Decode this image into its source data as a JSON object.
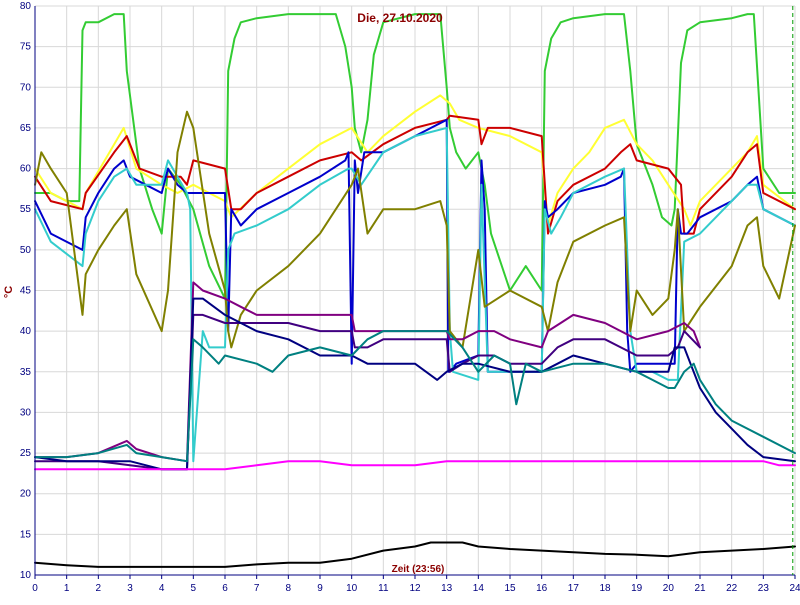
{
  "chart_data": {
    "type": "line",
    "title": "Die, 27.10.2020",
    "xlabel": "Zeit (23:56)",
    "ylabel": "°C",
    "xlim": [
      0,
      24
    ],
    "ylim": [
      10,
      80
    ],
    "grid": true,
    "x_ticks": [
      "0",
      "1",
      "2",
      "3",
      "4",
      "5",
      "6",
      "7",
      "8",
      "9",
      "10",
      "11",
      "12",
      "13",
      "14",
      "15",
      "16",
      "17",
      "18",
      "19",
      "20",
      "21",
      "22",
      "23",
      "24"
    ],
    "y_ticks": [
      "10",
      "15",
      "20",
      "25",
      "30",
      "35",
      "40",
      "45",
      "50",
      "55",
      "60",
      "65",
      "70",
      "75",
      "80"
    ],
    "series": [
      {
        "color": "#33cc33",
        "x": [
          0,
          0.5,
          1,
          1.4,
          1.5,
          1.6,
          2,
          2.5,
          2.8,
          2.9,
          3.3,
          3.7,
          4,
          4.2,
          4.6,
          5.0,
          5.5,
          6.0,
          6.1,
          6.3,
          6.5,
          7,
          8,
          9,
          9.5,
          9.8,
          10.0,
          10.1,
          10.3,
          10.5,
          10.7,
          11,
          12,
          12.8,
          13.0,
          13.1,
          13.3,
          13.6,
          14.0,
          14.2,
          14.4,
          15,
          15.5,
          16.0,
          16.1,
          16.3,
          16.6,
          17,
          18,
          18.6,
          18.8,
          19,
          19.5,
          19.8,
          20.1,
          20.2,
          20.4,
          20.6,
          21,
          22,
          22.5,
          22.7,
          23,
          23.5,
          24
        ],
        "y": [
          57,
          57,
          56,
          56,
          77,
          78,
          78,
          79,
          79,
          72,
          60,
          55,
          52,
          60,
          58,
          55,
          48,
          44,
          72,
          76,
          78,
          78.5,
          79,
          79,
          79,
          75,
          70,
          65,
          62,
          66,
          74,
          78,
          79,
          79,
          70,
          65,
          62,
          60,
          62,
          58,
          52,
          45,
          48,
          45,
          72,
          76,
          78,
          78.5,
          79,
          79,
          72,
          63,
          58,
          54,
          53,
          55,
          73,
          77,
          78,
          78.5,
          79,
          79,
          60,
          57,
          57
        ]
      },
      {
        "color": "#ffff33",
        "x": [
          0,
          0.5,
          1.5,
          1.6,
          2.5,
          2.8,
          3.2,
          4,
          4.5,
          5,
          5.5,
          6,
          6.2,
          7,
          8,
          9,
          10,
          10.5,
          11,
          12,
          12.8,
          13.1,
          13.4,
          14,
          15,
          16,
          16.2,
          16.5,
          17,
          17.5,
          18,
          18.6,
          19,
          19.5,
          20,
          20.5,
          20.7,
          21,
          22,
          22.5,
          22.8,
          23,
          24
        ],
        "y": [
          60,
          57,
          55,
          57,
          63,
          65,
          60,
          58,
          57,
          58,
          57,
          56,
          54,
          57,
          60,
          63,
          65,
          62,
          64,
          67,
          69,
          68,
          66,
          65,
          64,
          62,
          53,
          57,
          60,
          62,
          65,
          66,
          63,
          61,
          58,
          55,
          53,
          56,
          60,
          62,
          64,
          58,
          55
        ]
      },
      {
        "color": "#cc0000",
        "x": [
          0,
          0.5,
          1.5,
          1.6,
          2.5,
          2.9,
          3.3,
          4,
          4.6,
          4.8,
          5,
          5.5,
          6.0,
          6.2,
          6.5,
          7,
          8,
          9,
          10,
          10.3,
          11,
          12,
          13,
          13.1,
          14,
          14.1,
          14.3,
          15,
          16,
          16.2,
          16.5,
          17,
          18,
          18.5,
          18.8,
          19,
          20,
          20.4,
          20.5,
          20.8,
          21,
          22,
          22.5,
          22.8,
          23,
          24
        ],
        "y": [
          59,
          56,
          55,
          57,
          62,
          64,
          60,
          59,
          59,
          58,
          61,
          60.5,
          60,
          55,
          55,
          57,
          59,
          61,
          62,
          61,
          63,
          65,
          66,
          66.5,
          66,
          63,
          65,
          65,
          64,
          52,
          56,
          58,
          60,
          62,
          63,
          61,
          60,
          58,
          52,
          52,
          55,
          59,
          62,
          63,
          57,
          55
        ]
      },
      {
        "color": "#0000cc",
        "x": [
          0,
          0.5,
          1.5,
          1.6,
          2,
          2.5,
          2.8,
          3,
          3.5,
          4,
          4.2,
          4.5,
          4.8,
          4.9,
          5.0,
          5.5,
          6.0,
          6.1,
          6.2,
          6.5,
          7,
          8,
          9,
          9.8,
          9.9,
          10.0,
          10.1,
          10.2,
          10.4,
          11,
          12,
          13,
          13.05,
          13.1,
          13.3,
          14,
          14.1,
          14.2,
          14.3,
          14.5,
          15,
          16,
          16.1,
          16.2,
          16.5,
          17,
          18,
          18.5,
          18.6,
          18.7,
          18.8,
          19,
          19.5,
          20,
          20.2,
          20.3,
          20.4,
          20.6,
          21,
          22,
          22.5,
          22.8,
          23,
          24
        ],
        "y": [
          56,
          52,
          50,
          54,
          57,
          60,
          61,
          59,
          58,
          57,
          60,
          58,
          57,
          57,
          57,
          57,
          57,
          40,
          55,
          53,
          55,
          57,
          59,
          61,
          62,
          36,
          61,
          57,
          62,
          62,
          64,
          66,
          35,
          35,
          36,
          37,
          61,
          55,
          35,
          35,
          35,
          35,
          56,
          54,
          55,
          57,
          58,
          59,
          60,
          40,
          35,
          36,
          36,
          36,
          36,
          55,
          52,
          52,
          54,
          56,
          58,
          59,
          55,
          53
        ]
      },
      {
        "color": "#33cccc",
        "x": [
          0,
          0.5,
          1.5,
          1.6,
          2,
          2.5,
          2.9,
          3.2,
          4,
          4.2,
          4.5,
          4.8,
          4.9,
          5.0,
          5.3,
          5.5,
          6.0,
          6.1,
          6.3,
          7,
          8,
          9,
          9.9,
          10.0,
          10.3,
          11,
          12,
          13,
          13.1,
          13.2,
          14,
          14.1,
          14.3,
          15,
          16,
          16.1,
          16.3,
          16.6,
          17,
          18,
          18.6,
          18.8,
          19,
          19.5,
          20,
          20.2,
          20.3,
          20.5,
          21,
          22,
          22.5,
          22.8,
          23,
          24
        ],
        "y": [
          55,
          51,
          48,
          52,
          56,
          59,
          60,
          58,
          58,
          61,
          59,
          57,
          55,
          24,
          40,
          38,
          38,
          50,
          52,
          53,
          55,
          58,
          60,
          60,
          58,
          62,
          64,
          65,
          40,
          35,
          34,
          58,
          35,
          35,
          35,
          55,
          52,
          54,
          57,
          59,
          60,
          40,
          35,
          35,
          34,
          34,
          34,
          51,
          52,
          56,
          58,
          58,
          55,
          53
        ]
      },
      {
        "color": "#808000",
        "x": [
          0,
          0.2,
          0.5,
          1,
          1.5,
          1.6,
          2,
          2.5,
          2.9,
          3.2,
          4,
          4.2,
          4.5,
          4.8,
          5,
          5.5,
          6.0,
          6.1,
          6.2,
          6.5,
          7,
          8,
          9,
          10,
          10.2,
          10.5,
          11,
          12,
          12.8,
          13.0,
          13.1,
          13.5,
          14,
          14.2,
          15,
          16,
          16.2,
          16.5,
          17,
          18,
          18.6,
          18.8,
          19,
          19.5,
          20,
          20.2,
          20.3,
          20.5,
          21,
          22,
          22.5,
          22.8,
          23,
          23.5,
          24
        ],
        "y": [
          58,
          62,
          60,
          57,
          42,
          47,
          50,
          53,
          55,
          47,
          40,
          45,
          62,
          67,
          65,
          52,
          45,
          40,
          38,
          42,
          45,
          48,
          52,
          58,
          60,
          52,
          55,
          55,
          56,
          53,
          40,
          38,
          50,
          43,
          45,
          43,
          40,
          46,
          51,
          53,
          54,
          40,
          45,
          42,
          44,
          50,
          55,
          40,
          43,
          48,
          53,
          54,
          48,
          44,
          53
        ]
      },
      {
        "color": "#800080",
        "x": [
          0,
          1,
          2,
          2.9,
          3.2,
          4,
          4.8,
          5.0,
          5.3,
          6,
          6.5,
          7,
          8,
          9,
          10,
          10.1,
          10.5,
          11,
          12,
          12.8,
          13.0,
          13.1,
          13.5,
          14,
          14.5,
          15,
          16,
          16.2,
          16.6,
          17,
          18,
          18.5,
          19,
          20,
          20.5,
          20.8,
          21
        ],
        "y": [
          24.5,
          24.5,
          25,
          26.5,
          25.5,
          24.5,
          24,
          46,
          45,
          44,
          43,
          42,
          42,
          42,
          42,
          40,
          40,
          40,
          40,
          40,
          40,
          39,
          39,
          40,
          40,
          39,
          38,
          40,
          41,
          42,
          41,
          40,
          39,
          40,
          41,
          40,
          38
        ]
      },
      {
        "color": "#400080",
        "x": [
          0,
          1,
          2,
          3,
          4,
          4.8,
          5.0,
          5.3,
          6,
          7,
          8,
          9,
          10,
          10.1,
          10.5,
          11,
          12,
          13,
          13.1,
          13.5,
          14,
          14.5,
          15,
          16,
          16.5,
          17,
          18,
          18.5,
          19,
          20,
          20.3,
          20.5,
          21
        ],
        "y": [
          24,
          24,
          24,
          23.5,
          23,
          23,
          42,
          42,
          41,
          41,
          41,
          40,
          40,
          38,
          38,
          39,
          39,
          39,
          35,
          36,
          37,
          37,
          36,
          36,
          38,
          39,
          39,
          38,
          37,
          37,
          38,
          40,
          38
        ]
      },
      {
        "color": "#000080",
        "x": [
          0,
          1,
          2,
          3,
          4,
          4.8,
          5.0,
          5.3,
          6,
          7,
          8,
          9,
          10,
          10.5,
          11,
          12,
          12.7,
          13,
          13.5,
          14,
          15,
          16,
          16.5,
          17,
          18,
          19,
          20,
          20.2,
          20.5,
          20.7,
          21,
          21.5,
          22,
          22.5,
          23,
          24
        ],
        "y": [
          24.5,
          24,
          24,
          24,
          23,
          23,
          44,
          44,
          42,
          40,
          39,
          37,
          37,
          36,
          36,
          36,
          34,
          35,
          36,
          36,
          35,
          35,
          36,
          37,
          36,
          35,
          35,
          38,
          38,
          36,
          33,
          30,
          28,
          26,
          24.5,
          24
        ]
      },
      {
        "color": "#008080",
        "x": [
          0,
          1,
          2,
          2.9,
          3.2,
          4,
          4.8,
          5.0,
          5.3,
          5.8,
          6,
          7,
          7.5,
          8,
          9,
          10,
          10.5,
          11,
          12,
          13,
          13.5,
          14,
          14.5,
          15,
          15.2,
          15.5,
          16,
          17,
          18,
          19,
          19.5,
          20,
          20.2,
          20.5,
          20.8,
          21,
          21.5,
          22,
          23,
          24
        ],
        "y": [
          24.5,
          24.5,
          25,
          26,
          25,
          24.5,
          24,
          39,
          38,
          36,
          37,
          36,
          35,
          37,
          38,
          37,
          39,
          40,
          40,
          40,
          38,
          35,
          37,
          36,
          31,
          36,
          35,
          36,
          36,
          35,
          34,
          33,
          33,
          35,
          36,
          34,
          31,
          29,
          27,
          25
        ]
      },
      {
        "color": "#ff00ff",
        "x": [
          0,
          5,
          6,
          7,
          8,
          9,
          10,
          12,
          13,
          14,
          15,
          16,
          17,
          18,
          19,
          20,
          21,
          22,
          23,
          23.5,
          24
        ],
        "y": [
          23,
          23,
          23,
          23.5,
          24,
          24,
          23.5,
          23.5,
          24,
          24,
          24,
          24,
          24,
          24,
          24,
          24,
          24,
          24,
          24,
          23.5,
          23.5
        ]
      },
      {
        "color": "#000000",
        "x": [
          0,
          1,
          2,
          3,
          4,
          5,
          6,
          7,
          8,
          9,
          10,
          11,
          12,
          12.5,
          13,
          13.5,
          14,
          15,
          16,
          17,
          18,
          19,
          20,
          21,
          22,
          23,
          24
        ],
        "y": [
          11.5,
          11.2,
          11,
          11,
          11,
          11,
          11,
          11.3,
          11.5,
          11.5,
          12,
          13,
          13.5,
          14,
          14,
          14,
          13.5,
          13.2,
          13,
          12.8,
          12.6,
          12.5,
          12.3,
          12.8,
          13,
          13.2,
          13.5
        ]
      }
    ]
  }
}
